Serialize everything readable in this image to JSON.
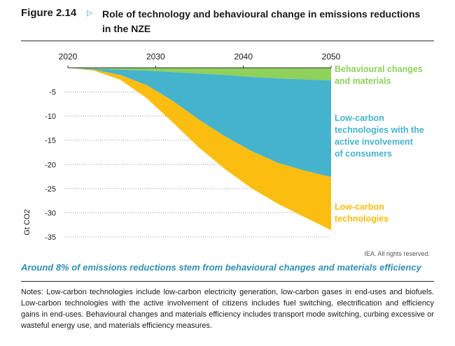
{
  "figure": {
    "label": "Figure 2.14",
    "title": "Role of technology and behavioural change in emissions reductions in the NZE",
    "caption": "Around 8% of emissions reductions stem from behavioural changes and materials efficiency",
    "credit": "IEA. All rights reserved.",
    "notes": "Notes: Low-carbon technologies include low-carbon electricity generation, low-carbon gases in end-uses and biofuels. Low-carbon technologies with the active involvement of citizens includes fuel switching, electrification and efficiency gains in end-uses. Behavioural changes and materials efficiency includes transport mode switching, curbing excessive or wasteful energy use, and materials efficiency measures."
  },
  "chart_data": {
    "type": "area",
    "xlabel": "",
    "ylabel": "Gt CO2",
    "xlim": [
      2020,
      2050
    ],
    "ylim": [
      -35,
      0
    ],
    "x_ticks": [
      "2020",
      "2030",
      "2040",
      "2050"
    ],
    "y_ticks": [
      "-5",
      "-10",
      "-15",
      "-20",
      "-25",
      "-30",
      "-35"
    ],
    "grid": "horizontal dotted",
    "legend": "right (direct labels)",
    "x": [
      2020,
      2023,
      2026,
      2029,
      2032,
      2035,
      2038,
      2041,
      2044,
      2047,
      2050
    ],
    "series": [
      {
        "name": "Behavioural changes and materials",
        "color": "#8ed15b",
        "lines": [
          "Behavioural changes",
          "and materials"
        ],
        "values": [
          0,
          -0.2,
          -0.4,
          -0.6,
          -0.9,
          -1.2,
          -1.5,
          -1.9,
          -2.2,
          -2.4,
          -2.6
        ]
      },
      {
        "name": "Low-carbon technologies with the active involvement of consumers",
        "color": "#46b3cd",
        "lines": [
          "Low-carbon",
          "technologies with the",
          "active involvement",
          "of consumers"
        ],
        "values": [
          0,
          -0.2,
          -1.1,
          -3.0,
          -6.0,
          -9.6,
          -12.8,
          -15.4,
          -17.5,
          -18.9,
          -20.0
        ]
      },
      {
        "name": "Low-carbon technologies",
        "color": "#fbbd0f",
        "lines": [
          "Low-carbon",
          "technologies"
        ],
        "values": [
          0,
          -0.2,
          -1.0,
          -2.7,
          -4.5,
          -5.8,
          -6.8,
          -7.7,
          -8.5,
          -9.6,
          -11.0
        ]
      }
    ]
  }
}
